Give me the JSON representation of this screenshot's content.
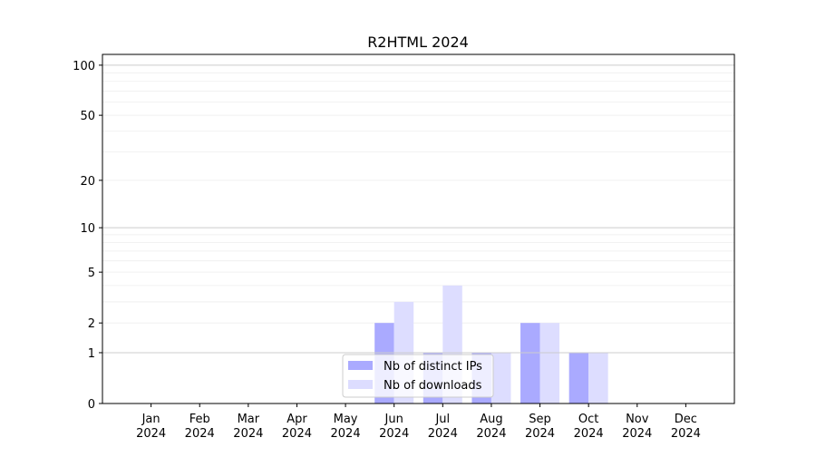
{
  "chart_data": {
    "type": "bar",
    "title": "R2HTML 2024",
    "xlabel": "",
    "ylabel": "",
    "yscale": "log1p",
    "ylim": [
      0,
      116
    ],
    "yticks": [
      0,
      1,
      2,
      5,
      10,
      20,
      50,
      100
    ],
    "ytick_labels": [
      "0",
      "1",
      "2",
      "5",
      "10",
      "20",
      "50",
      "100"
    ],
    "grid": true,
    "legend_position": "bottom-center",
    "categories": [
      [
        "Jan",
        "2024"
      ],
      [
        "Feb",
        "2024"
      ],
      [
        "Mar",
        "2024"
      ],
      [
        "Apr",
        "2024"
      ],
      [
        "May",
        "2024"
      ],
      [
        "Jun",
        "2024"
      ],
      [
        "Jul",
        "2024"
      ],
      [
        "Aug",
        "2024"
      ],
      [
        "Sep",
        "2024"
      ],
      [
        "Oct",
        "2024"
      ],
      [
        "Nov",
        "2024"
      ],
      [
        "Dec",
        "2024"
      ]
    ],
    "series": [
      {
        "name": "Nb of distinct IPs",
        "color": "#aaaaff",
        "values": [
          0,
          0,
          0,
          0,
          0,
          2,
          1,
          1,
          2,
          1,
          0,
          0
        ]
      },
      {
        "name": "Nb of downloads",
        "color": "#ddddff",
        "values": [
          0,
          0,
          0,
          0,
          0,
          3,
          4,
          1,
          2,
          1,
          0,
          0
        ]
      }
    ]
  }
}
